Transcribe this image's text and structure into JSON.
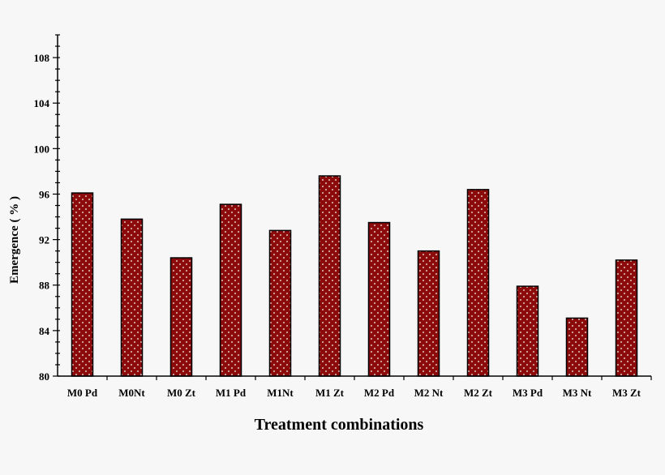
{
  "chart_data": {
    "type": "bar",
    "categories": [
      "M0 Pd",
      "M0Nt",
      "M0 Zt",
      "M1 Pd",
      "M1Nt",
      "M1 Zt",
      "M2 Pd",
      "M2 Nt",
      "M2 Zt",
      "M3 Pd",
      "M3 Nt",
      "M3 Zt"
    ],
    "values": [
      96.1,
      93.8,
      90.4,
      95.1,
      92.8,
      97.6,
      93.5,
      91.0,
      96.4,
      87.9,
      85.1,
      90.2
    ],
    "xlabel": "Treatment combinations",
    "ylabel": "Emergence ( % )",
    "ylim": [
      80,
      110
    ],
    "yticks": [
      80,
      84,
      88,
      92,
      96,
      100,
      104,
      108
    ],
    "grid": false,
    "bar_color": "#8b0a0a",
    "bar_pattern": "white dots"
  }
}
